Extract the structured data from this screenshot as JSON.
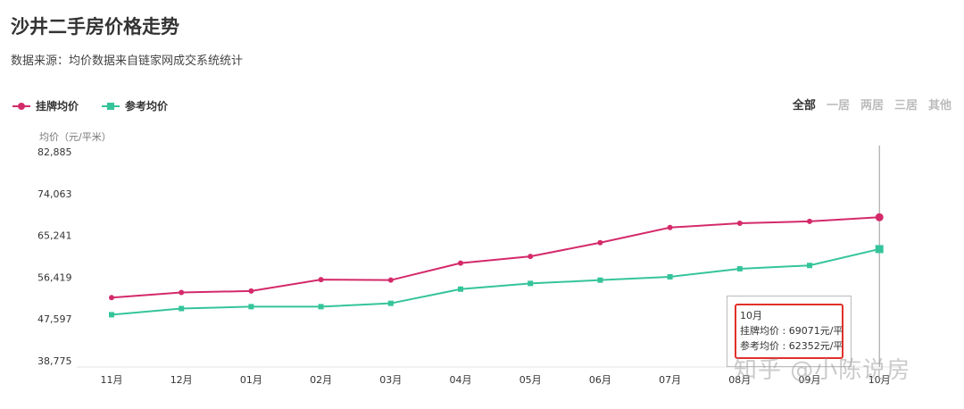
{
  "header": {
    "title": "沙井二手房价格走势",
    "subtitle": "数据来源：均价数据来自链家网成交系统统计"
  },
  "filters": [
    {
      "label": "全部",
      "active": true
    },
    {
      "label": "一居",
      "active": false
    },
    {
      "label": "两居",
      "active": false
    },
    {
      "label": "三居",
      "active": false
    },
    {
      "label": "其他",
      "active": false
    }
  ],
  "colors": {
    "listing": "#d42a6a",
    "reference": "#35c49a"
  },
  "tooltip": {
    "title": "10月",
    "line1": "挂牌均价 : 69071元/平",
    "line2": "参考均价 : 62352元/平"
  },
  "watermark": "知乎 @小陈说房",
  "chart_data": {
    "type": "line",
    "ylabel": "均价（元/平米）",
    "categories": [
      "11月",
      "12月",
      "01月",
      "02月",
      "03月",
      "04月",
      "05月",
      "06月",
      "07月",
      "08月",
      "09月",
      "10月"
    ],
    "yticks": [
      "82,885",
      "74,063",
      "65,241",
      "56,419",
      "47,597",
      "38,775"
    ],
    "ylim": [
      38775,
      82885
    ],
    "series": [
      {
        "name": "挂牌均价",
        "marker": "circle",
        "values": [
          52100,
          53200,
          53500,
          55900,
          55800,
          59400,
          60800,
          63700,
          66900,
          67800,
          68200,
          69071
        ]
      },
      {
        "name": "参考均价",
        "marker": "square",
        "values": [
          48500,
          49800,
          50200,
          50200,
          50900,
          53900,
          55100,
          55800,
          56500,
          58200,
          58900,
          62352
        ]
      }
    ],
    "legend": "top-left",
    "grid": false
  }
}
